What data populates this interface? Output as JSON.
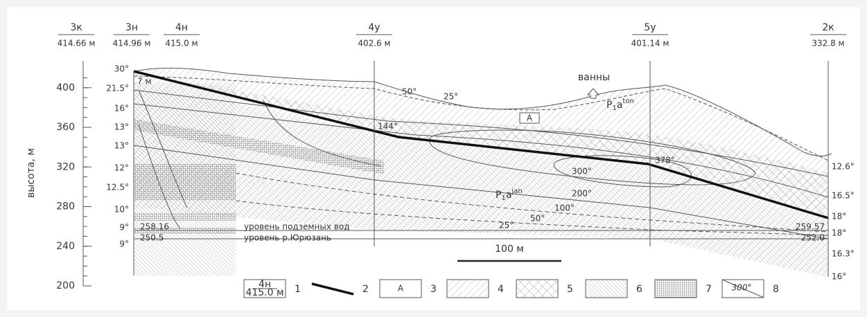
{
  "axis": {
    "label": "высота, м",
    "ticks": [
      200,
      240,
      280,
      320,
      360,
      400
    ]
  },
  "wells": [
    {
      "name": "3к",
      "elevation": "414.66 м"
    },
    {
      "name": "3н",
      "elevation": "414.96 м"
    },
    {
      "name": "4н",
      "elevation": "415.0 м"
    },
    {
      "name": "4у",
      "elevation": "402.6 м"
    },
    {
      "name": "5у",
      "elevation": "401.14 м"
    },
    {
      "name": "2к",
      "elevation": "332.8 м"
    }
  ],
  "dip_angles_left": [
    "30°",
    "21.5°",
    "16°",
    "13°",
    "13°",
    "12°",
    "12.5°",
    "10°",
    "9°",
    "9°"
  ],
  "dip_angles_right": [
    "12.6°",
    "16.5°",
    "18°",
    "18°",
    "16.3°",
    "16°"
  ],
  "annotations": {
    "thickness": "7 м",
    "baths": "ванны",
    "box": "А",
    "formation_top": {
      "base": "P",
      "sub": "1",
      "main": "a",
      "sup": "ton"
    },
    "formation_bottom": {
      "base": "P",
      "sub": "1",
      "main": "a",
      "sup": "jan"
    },
    "temperatures": [
      "50°",
      "25°",
      "144°",
      "378°",
      "300°",
      "200°",
      "100°",
      "50°",
      "25°"
    ],
    "groundwater": {
      "label": "уровень подземных вод",
      "left": "258.16",
      "right": "259.57"
    },
    "river": {
      "label": "уровень р.Юрюзань",
      "left": "250.5",
      "right": "252.0"
    },
    "scale_bar": "100 м"
  },
  "legend": [
    {
      "number": "1",
      "sample": [
        "4н",
        "415.0 м"
      ]
    },
    {
      "number": "2"
    },
    {
      "number": "3",
      "sample": "А"
    },
    {
      "number": "4"
    },
    {
      "number": "5"
    },
    {
      "number": "6"
    },
    {
      "number": "7"
    },
    {
      "number": "8",
      "sample": "300°"
    }
  ]
}
